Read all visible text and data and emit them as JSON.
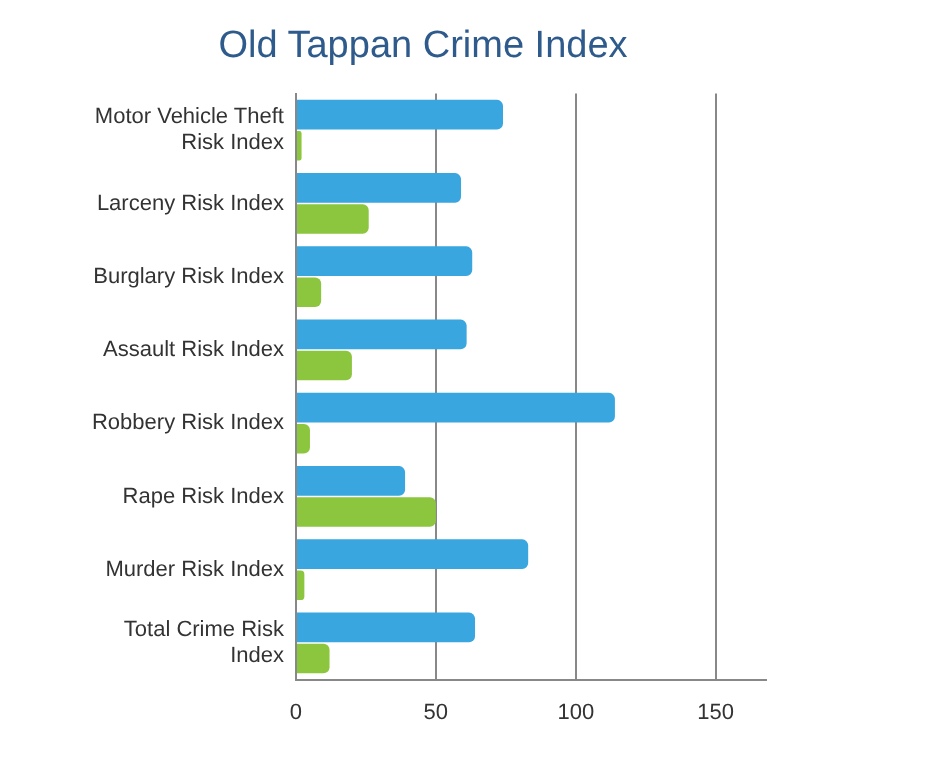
{
  "chart_data": {
    "type": "bar",
    "orientation": "horizontal",
    "title": "Old Tappan Crime Index",
    "categories": [
      "Motor Vehicle Theft Risk Index",
      "Larceny Risk Index",
      "Burglary Risk Index",
      "Assault Risk Index",
      "Robbery Risk Index",
      "Rape Risk Index",
      "Murder Risk Index",
      "Total Crime Risk Index"
    ],
    "series": [
      {
        "color": "#39a6e0",
        "values": [
          74,
          59,
          63,
          61,
          114,
          39,
          83,
          64
        ]
      },
      {
        "color": "#8cc63f",
        "values": [
          2,
          26,
          9,
          20,
          5,
          50,
          3,
          12
        ]
      }
    ],
    "xlim": [
      0,
      168
    ],
    "xticks": [
      0,
      50,
      100,
      150
    ],
    "grid": "x",
    "legend": false
  }
}
